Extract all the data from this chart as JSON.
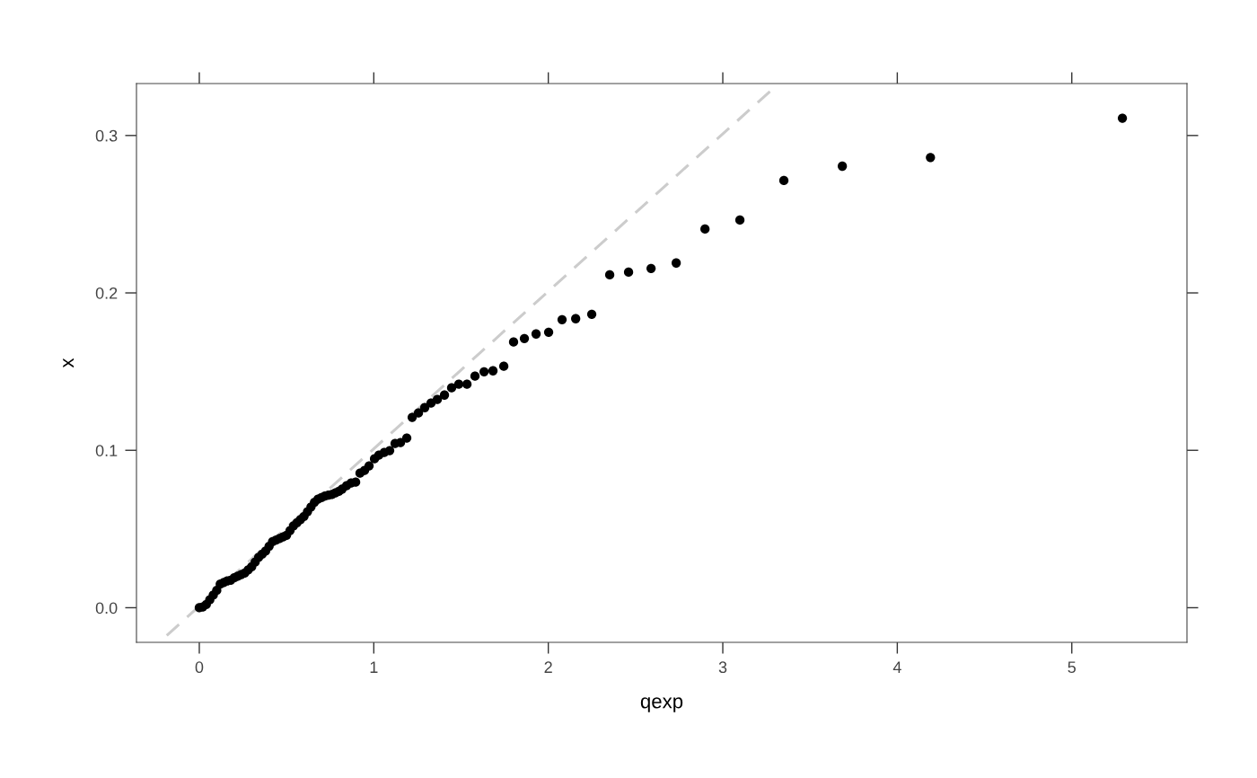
{
  "chart_data": {
    "type": "scatter",
    "xlabel": "qexp",
    "ylabel": "x",
    "xlim": [
      -0.36,
      5.66
    ],
    "ylim": [
      -0.022,
      0.333
    ],
    "xticks": [
      0,
      1,
      2,
      3,
      4,
      5
    ],
    "yticks": [
      {
        "value": 0,
        "label": "0.0"
      },
      {
        "value": 0.1,
        "label": "0.1"
      },
      {
        "value": 0.2,
        "label": "0.2"
      },
      {
        "value": 0.3,
        "label": "0.3"
      }
    ],
    "grid": false,
    "series": [
      {
        "type": "line",
        "color": "#cccccc",
        "line_style": "dashed",
        "marker": "none",
        "x": [
          -0.23,
          3.27
        ],
        "values": [
          -0.022,
          0.328
        ]
      },
      {
        "color": "#000000",
        "marker": "circle",
        "x": [
          0.0,
          0.02,
          0.04,
          0.06,
          0.08,
          0.1,
          0.12,
          0.14,
          0.16,
          0.18,
          0.2,
          0.22,
          0.24,
          0.26,
          0.28,
          0.3,
          0.32,
          0.34,
          0.36,
          0.38,
          0.4,
          0.42,
          0.44,
          0.46,
          0.48,
          0.5,
          0.52,
          0.54,
          0.56,
          0.58,
          0.6,
          0.62,
          0.64,
          0.66,
          0.68,
          0.7,
          0.72,
          0.74,
          0.76,
          0.78,
          0.8,
          0.818,
          0.844,
          0.87,
          0.896,
          0.921,
          0.947,
          0.973,
          1.004,
          1.029,
          1.06,
          1.091,
          1.122,
          1.153,
          1.189,
          1.22,
          1.256,
          1.292,
          1.328,
          1.364,
          1.405,
          1.446,
          1.487,
          1.534,
          1.58,
          1.632,
          1.683,
          1.745,
          1.801,
          1.863,
          1.93,
          2.002,
          2.079,
          2.157,
          2.249,
          2.352,
          2.46,
          2.589,
          2.733,
          2.898,
          3.098,
          3.35,
          3.685,
          4.19,
          5.29
        ],
        "values": [
          0.0,
          0.0005,
          0.002,
          0.005,
          0.008,
          0.011,
          0.015,
          0.016,
          0.017,
          0.0175,
          0.019,
          0.02,
          0.021,
          0.022,
          0.024,
          0.026,
          0.029,
          0.032,
          0.034,
          0.036,
          0.039,
          0.042,
          0.043,
          0.044,
          0.045,
          0.046,
          0.049,
          0.052,
          0.054,
          0.056,
          0.058,
          0.061,
          0.064,
          0.067,
          0.069,
          0.07,
          0.071,
          0.0715,
          0.072,
          0.073,
          0.074,
          0.0753,
          0.0775,
          0.0792,
          0.0798,
          0.0855,
          0.0872,
          0.0901,
          0.0946,
          0.0969,
          0.0986,
          0.0998,
          0.1043,
          0.1049,
          0.1078,
          0.1209,
          0.1237,
          0.1271,
          0.13,
          0.1323,
          0.1351,
          0.1397,
          0.142,
          0.142,
          0.1471,
          0.1499,
          0.1505,
          0.1534,
          0.1688,
          0.171,
          0.1739,
          0.175,
          0.183,
          0.1836,
          0.1864,
          0.2115,
          0.2132,
          0.2155,
          0.219,
          0.2406,
          0.2463,
          0.2714,
          0.2805,
          0.286,
          0.311
        ]
      }
    ]
  }
}
